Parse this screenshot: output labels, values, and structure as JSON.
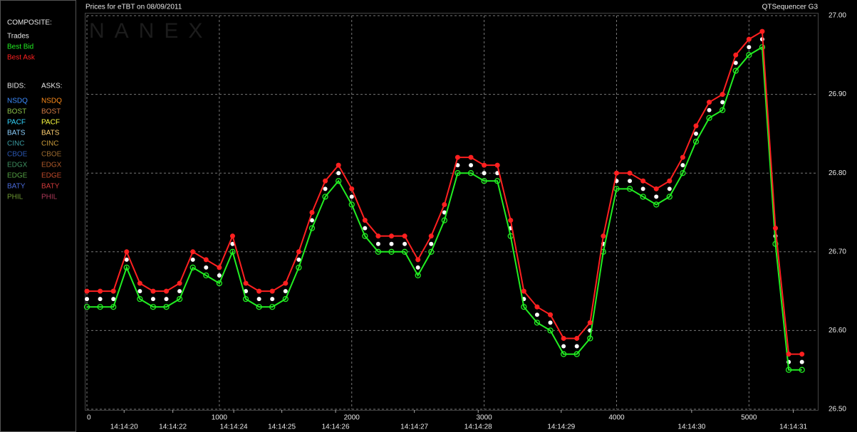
{
  "chart_data": {
    "type": "line",
    "title": "Prices for  eTBT  on  08/09/2011",
    "subtitle": "QTSequencer G3",
    "watermark": "NANEX",
    "composite_heading": "COMPOSITE:",
    "bids_heading": "BIDS:",
    "asks_heading": "ASKS:",
    "bids": [
      {
        "name": "NSDQ",
        "color": "#3c8cff"
      },
      {
        "name": "BOST",
        "color": "#8cc04a"
      },
      {
        "name": "PACF",
        "color": "#33d6ff"
      },
      {
        "name": "BATS",
        "color": "#8cd0ff"
      },
      {
        "name": "CINC",
        "color": "#3a9aa0"
      },
      {
        "name": "CBOE",
        "color": "#2a56b0"
      },
      {
        "name": "EDGX",
        "color": "#3f9060"
      },
      {
        "name": "EDGE",
        "color": "#55a044"
      },
      {
        "name": "BATY",
        "color": "#4a6ad8"
      },
      {
        "name": "PHIL",
        "color": "#6e9a33"
      }
    ],
    "asks": [
      {
        "name": "NSDQ",
        "color": "#ff8c1a"
      },
      {
        "name": "BOST",
        "color": "#d07a44"
      },
      {
        "name": "PACF",
        "color": "#ffff40"
      },
      {
        "name": "BATS",
        "color": "#ffd070"
      },
      {
        "name": "CINC",
        "color": "#c89a3a"
      },
      {
        "name": "CBOE",
        "color": "#9a6a30"
      },
      {
        "name": "EDGX",
        "color": "#b05a2a"
      },
      {
        "name": "EDGE",
        "color": "#c04a2a"
      },
      {
        "name": "BATY",
        "color": "#d03a3a"
      },
      {
        "name": "PHIL",
        "color": "#b03a5a"
      }
    ],
    "x": [
      0,
      100,
      200,
      300,
      400,
      500,
      600,
      700,
      800,
      900,
      1000,
      1100,
      1200,
      1300,
      1400,
      1500,
      1600,
      1700,
      1800,
      1900,
      2000,
      2100,
      2200,
      2300,
      2400,
      2500,
      2600,
      2700,
      2800,
      2900,
      3000,
      3100,
      3200,
      3300,
      3400,
      3500,
      3600,
      3700,
      3800,
      3900,
      4000,
      4100,
      4200,
      4300,
      4400,
      4500,
      4600,
      4700,
      4800,
      4900,
      5000,
      5100,
      5200,
      5300,
      5400
    ],
    "series": [
      {
        "name": "Trades",
        "color": "#ffffff",
        "values": [
          26.64,
          26.64,
          26.64,
          26.69,
          26.65,
          26.64,
          26.64,
          26.65,
          26.69,
          26.68,
          26.67,
          26.71,
          26.65,
          26.64,
          26.64,
          26.65,
          26.69,
          26.74,
          26.78,
          26.8,
          26.77,
          26.73,
          26.71,
          26.71,
          26.71,
          26.68,
          26.71,
          26.75,
          26.81,
          26.81,
          26.8,
          26.8,
          26.73,
          26.64,
          26.62,
          26.61,
          26.58,
          26.58,
          26.6,
          26.71,
          26.79,
          26.79,
          26.78,
          26.77,
          26.78,
          26.81,
          26.85,
          26.88,
          26.89,
          26.94,
          26.96,
          26.97,
          26.72,
          26.56,
          26.56
        ]
      },
      {
        "name": "Best Bid",
        "color": "#22ee22",
        "values": [
          26.63,
          26.63,
          26.63,
          26.68,
          26.64,
          26.63,
          26.63,
          26.64,
          26.68,
          26.67,
          26.66,
          26.7,
          26.64,
          26.63,
          26.63,
          26.64,
          26.68,
          26.73,
          26.77,
          26.79,
          26.76,
          26.72,
          26.7,
          26.7,
          26.7,
          26.67,
          26.7,
          26.74,
          26.8,
          26.8,
          26.79,
          26.79,
          26.72,
          26.63,
          26.61,
          26.6,
          26.57,
          26.57,
          26.59,
          26.7,
          26.78,
          26.78,
          26.77,
          26.76,
          26.77,
          26.8,
          26.84,
          26.87,
          26.88,
          26.93,
          26.95,
          26.96,
          26.71,
          26.55,
          26.55
        ]
      },
      {
        "name": "Best Ask",
        "color": "#ff2020",
        "values": [
          26.65,
          26.65,
          26.65,
          26.7,
          26.66,
          26.65,
          26.65,
          26.66,
          26.7,
          26.69,
          26.68,
          26.72,
          26.66,
          26.65,
          26.65,
          26.66,
          26.7,
          26.75,
          26.79,
          26.81,
          26.78,
          26.74,
          26.72,
          26.72,
          26.72,
          26.69,
          26.72,
          26.76,
          26.82,
          26.82,
          26.81,
          26.81,
          26.74,
          26.65,
          26.63,
          26.62,
          26.59,
          26.59,
          26.61,
          26.72,
          26.8,
          26.8,
          26.79,
          26.78,
          26.79,
          26.82,
          26.86,
          26.89,
          26.9,
          26.95,
          26.97,
          26.98,
          26.73,
          26.57,
          26.57
        ]
      }
    ],
    "xlim": [
      0,
      5520
    ],
    "xticks": [
      0,
      1000,
      2000,
      3000,
      4000,
      5000
    ],
    "time_ticks": [
      {
        "value": 281,
        "label": "14:14:20"
      },
      {
        "value": 649,
        "label": "14:14:22"
      },
      {
        "value": 1109,
        "label": "14:14:24"
      },
      {
        "value": 1472,
        "label": "14:14:25"
      },
      {
        "value": 1878,
        "label": "14:14:26"
      },
      {
        "value": 2473,
        "label": "14:14:27"
      },
      {
        "value": 2955,
        "label": "14:14:28"
      },
      {
        "value": 3582,
        "label": "14:14:29"
      },
      {
        "value": 4567,
        "label": "14:14:30"
      },
      {
        "value": 5335,
        "label": "14:14:31"
      }
    ],
    "ylim": [
      26.5,
      27.0
    ],
    "yticks": [
      {
        "value": 26.5,
        "label": "26.50"
      },
      {
        "value": 26.6,
        "label": "26.60"
      },
      {
        "value": 26.7,
        "label": "26.70"
      },
      {
        "value": 26.8,
        "label": "26.80"
      },
      {
        "value": 26.9,
        "label": "26.90"
      },
      {
        "value": 27.0,
        "label": "27.00"
      }
    ],
    "grid": true
  }
}
